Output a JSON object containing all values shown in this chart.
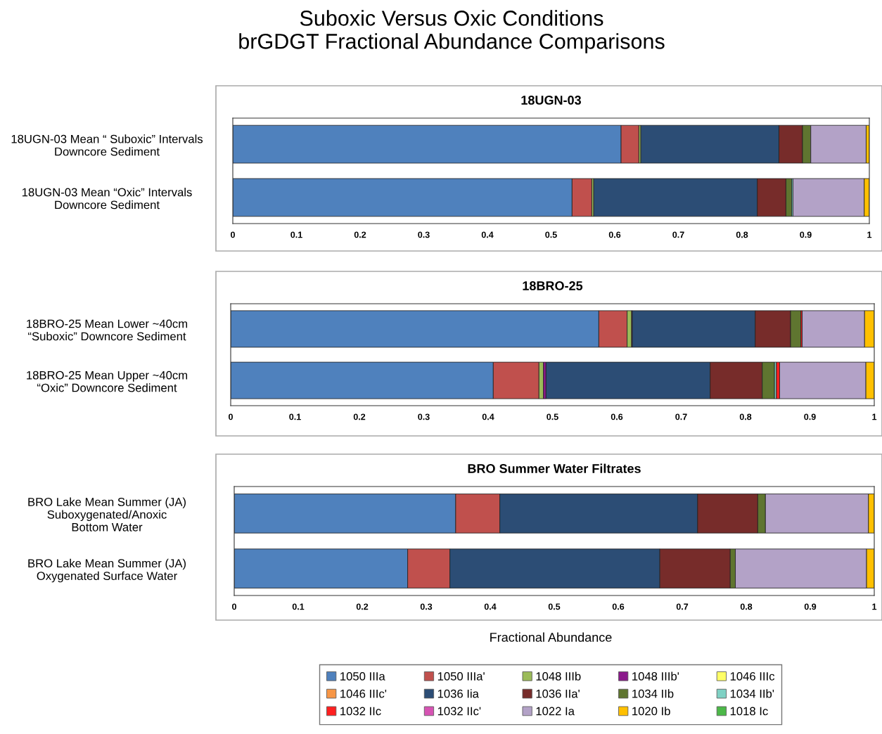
{
  "chart_data": [
    {
      "type": "bar",
      "orientation": "horizontal",
      "stacked": true,
      "title": "18UGN-03",
      "annotations": [
        "Suboxic Versus Oxic Conditions\nbrGDGT Fractional Abundance Comparisons"
      ],
      "legend": false,
      "categories": [
        "18UGN-03 Mean “ Suboxic” Intervals\nDowncore Sediment",
        "18UGN-03 Mean “Oxic” Intervals\nDowncore Sediment"
      ],
      "xlim": [
        0,
        1
      ],
      "xticks": [
        0,
        0.1,
        0.2,
        0.3,
        0.4,
        0.5,
        0.6,
        0.7,
        0.8,
        0.9,
        1
      ],
      "series": [
        {
          "color": "#4f81bd",
          "values": [
            0.61,
            0.533
          ]
        },
        {
          "color": "#c0504d",
          "values": [
            0.028,
            0.031
          ]
        },
        {
          "color": "#9bbb59",
          "values": [
            0.003,
            0.003
          ]
        },
        {
          "color": "#8b1a8b",
          "values": [
            null,
            null
          ]
        },
        {
          "color": "#ffff66",
          "values": [
            null,
            null
          ]
        },
        {
          "color": "#f79646",
          "values": [
            null,
            null
          ]
        },
        {
          "color": "#2c4d75",
          "values": [
            0.217,
            0.257
          ]
        },
        {
          "color": "#772c2a",
          "values": [
            0.037,
            0.045
          ]
        },
        {
          "color": "#5f7530",
          "values": [
            0.013,
            0.009
          ]
        },
        {
          "color": "#7fd1c4",
          "values": [
            null,
            0.002
          ]
        },
        {
          "color": "#ff2020",
          "values": [
            null,
            null
          ]
        },
        {
          "color": "#d653b3",
          "values": [
            null,
            null
          ]
        },
        {
          "color": "#b3a2c7",
          "values": [
            0.087,
            0.112
          ]
        },
        {
          "color": "#ffc000",
          "values": [
            0.005,
            0.008
          ]
        },
        {
          "color": "#4cb848",
          "values": [
            null,
            null
          ]
        }
      ]
    },
    {
      "type": "bar",
      "orientation": "horizontal",
      "stacked": true,
      "title": "18BRO-25",
      "legend": false,
      "categories": [
        "18BRO-25 Mean Lower ~40cm\n“Suboxic” Downcore Sediment",
        "18BRO-25 Mean Upper ~40cm\n“Oxic” Downcore Sediment"
      ],
      "xlim": [
        0,
        1
      ],
      "xticks": [
        0,
        0.1,
        0.2,
        0.3,
        0.4,
        0.5,
        0.6,
        0.7,
        0.8,
        0.9,
        1
      ],
      "series": [
        {
          "color": "#4f81bd",
          "values": [
            0.572,
            0.408
          ]
        },
        {
          "color": "#c0504d",
          "values": [
            0.044,
            0.071
          ]
        },
        {
          "color": "#9bbb59",
          "values": [
            0.007,
            0.007
          ]
        },
        {
          "color": "#8b1a8b",
          "values": [
            0.001,
            0.004
          ]
        },
        {
          "color": "#ffff66",
          "values": [
            null,
            null
          ]
        },
        {
          "color": "#f79646",
          "values": [
            null,
            null
          ]
        },
        {
          "color": "#2c4d75",
          "values": [
            0.191,
            0.255
          ]
        },
        {
          "color": "#772c2a",
          "values": [
            0.055,
            0.081
          ]
        },
        {
          "color": "#5f7530",
          "values": [
            0.016,
            0.019
          ]
        },
        {
          "color": "#7fd1c4",
          "values": [
            null,
            0.003
          ]
        },
        {
          "color": "#ff2020",
          "values": [
            0.002,
            0.005
          ]
        },
        {
          "color": "#d653b3",
          "values": [
            null,
            null
          ]
        },
        {
          "color": "#b3a2c7",
          "values": [
            0.097,
            0.134
          ]
        },
        {
          "color": "#ffc000",
          "values": [
            0.015,
            0.013
          ]
        },
        {
          "color": "#4cb848",
          "values": [
            null,
            null
          ]
        }
      ]
    },
    {
      "type": "bar",
      "orientation": "horizontal",
      "stacked": true,
      "title": "BRO Summer Water Filtrates",
      "xlabel": "Fractional Abundance",
      "legend": "bottom",
      "categories": [
        "BRO Lake Mean Summer (JA)\nSuboxygenated/Anoxic\nBottom Water",
        "BRO Lake Mean Summer (JA)\nOxygenated Surface Water"
      ],
      "xlim": [
        0,
        1
      ],
      "xticks": [
        0,
        0.1,
        0.2,
        0.3,
        0.4,
        0.5,
        0.6,
        0.7,
        0.8,
        0.9,
        1
      ],
      "series": [
        {
          "name": "1050 IIIa",
          "color": "#4f81bd",
          "values": [
            0.346,
            0.271
          ]
        },
        {
          "name": "1050 IIIa'",
          "color": "#c0504d",
          "values": [
            0.069,
            0.066
          ]
        },
        {
          "name": "1048 IIIb",
          "color": "#9bbb59",
          "values": [
            null,
            null
          ]
        },
        {
          "name": "1048 IIIb'",
          "color": "#8b1a8b",
          "values": [
            null,
            null
          ]
        },
        {
          "name": "1046 IIIc",
          "color": "#ffff66",
          "values": [
            null,
            null
          ]
        },
        {
          "name": "1046 IIIc'",
          "color": "#f79646",
          "values": [
            null,
            null
          ]
        },
        {
          "name": "1036 Iia",
          "color": "#2c4d75",
          "values": [
            0.309,
            0.328
          ]
        },
        {
          "name": "1036 IIa'",
          "color": "#772c2a",
          "values": [
            0.094,
            0.11
          ]
        },
        {
          "name": "1034 IIb",
          "color": "#5f7530",
          "values": [
            0.012,
            0.008
          ]
        },
        {
          "name": "1034 IIb'",
          "color": "#7fd1c4",
          "values": [
            null,
            null
          ]
        },
        {
          "name": "1032 IIc",
          "color": "#ff2020",
          "values": [
            null,
            null
          ]
        },
        {
          "name": "1032 IIc'",
          "color": "#d653b3",
          "values": [
            null,
            null
          ]
        },
        {
          "name": "1022 Ia",
          "color": "#b3a2c7",
          "values": [
            0.161,
            0.205
          ]
        },
        {
          "name": "1020 Ib",
          "color": "#ffc000",
          "values": [
            0.009,
            0.012
          ]
        },
        {
          "name": "1018 Ic",
          "color": "#4cb848",
          "values": [
            null,
            null
          ]
        }
      ]
    }
  ]
}
